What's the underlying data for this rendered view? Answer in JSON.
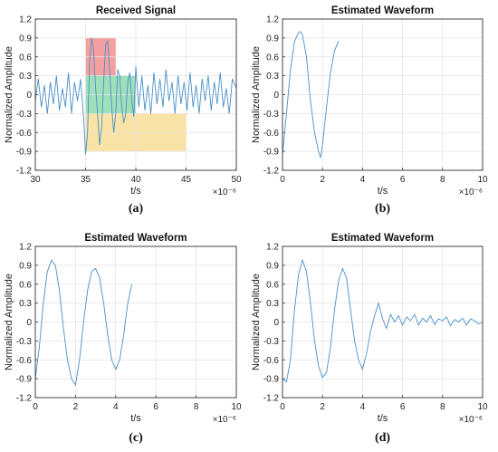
{
  "chart_data": [
    {
      "type": "line",
      "panel_caption": "(a)",
      "title": "Received Signal",
      "xlabel": "t/s",
      "ylabel": "Normalized Amplitude",
      "x_exponent_label": "×10⁻⁶",
      "xlim": [
        30,
        50
      ],
      "ylim": [
        -1.2,
        1.2
      ],
      "xticks": [
        "30",
        "35",
        "40",
        "45",
        "50"
      ],
      "yticks": [
        "-1.2",
        "-0.9",
        "-0.6",
        "-0.3",
        "0",
        "0.3",
        "0.6",
        "0.9",
        "1.2"
      ],
      "grid": true,
      "line_color": "#4a90c8",
      "highlight_regions": [
        {
          "x": [
            35,
            38
          ],
          "y": [
            0.3,
            0.9
          ],
          "color": "#f08080"
        },
        {
          "x": [
            35,
            40
          ],
          "y": [
            -0.3,
            0.3
          ],
          "color": "#7fd6a4"
        },
        {
          "x": [
            35,
            45
          ],
          "y": [
            -0.9,
            -0.3
          ],
          "color": "#f8d98a"
        }
      ],
      "series": [
        {
          "x": [
            30,
            30.3,
            30.6,
            30.9,
            31.2,
            31.5,
            31.8,
            32.1,
            32.4,
            32.7,
            33.0,
            33.3,
            33.6,
            33.9,
            34.2,
            34.5,
            34.8,
            35.0,
            35.2,
            35.4,
            35.6,
            35.8,
            36.0,
            36.2,
            36.4,
            36.6,
            36.8,
            37.0,
            37.2,
            37.4,
            37.6,
            37.8,
            38.0,
            38.2,
            38.4,
            38.6,
            38.8,
            39.0,
            39.2,
            39.4,
            39.6,
            39.8,
            40.0,
            40.3,
            40.6,
            40.9,
            41.2,
            41.5,
            41.8,
            42.1,
            42.4,
            42.7,
            43.0,
            43.3,
            43.6,
            43.9,
            44.2,
            44.5,
            44.8,
            45.1,
            45.4,
            45.7,
            46.0,
            46.3,
            46.6,
            46.9,
            47.2,
            47.5,
            47.8,
            48.1,
            48.4,
            48.7,
            49.0,
            49.3,
            49.6,
            50.0
          ],
          "y": [
            -0.1,
            0.25,
            -0.2,
            0.15,
            -0.3,
            0.2,
            -0.15,
            0.3,
            -0.25,
            0.1,
            -0.2,
            0.35,
            -0.3,
            0.2,
            -0.1,
            0.25,
            -0.35,
            -0.95,
            -0.6,
            0.5,
            0.9,
            0.7,
            0.1,
            -0.3,
            -0.8,
            -0.5,
            0.2,
            0.8,
            0.85,
            0.4,
            -0.2,
            -0.6,
            -0.3,
            0.4,
            0.3,
            -0.2,
            -0.45,
            -0.3,
            0.2,
            0.35,
            -0.1,
            -0.35,
            0.45,
            -0.2,
            0.3,
            -0.25,
            0.15,
            -0.3,
            0.35,
            -0.15,
            0.25,
            -0.2,
            0.4,
            -0.1,
            0.2,
            -0.3,
            0.3,
            -0.15,
            0.2,
            -0.25,
            0.35,
            -0.2,
            0.15,
            -0.3,
            0.25,
            -0.1,
            0.3,
            -0.25,
            0.2,
            -0.15,
            0.35,
            -0.2,
            0.1,
            -0.3,
            0.25,
            0.1
          ]
        }
      ]
    },
    {
      "type": "line",
      "panel_caption": "(b)",
      "title": "Estimated Waveform",
      "xlabel": "t/s",
      "ylabel": "Normalized Amplitude",
      "x_exponent_label": "×10⁻⁶",
      "xlim": [
        0,
        10
      ],
      "ylim": [
        -1.2,
        1.2
      ],
      "xticks": [
        "0",
        "2",
        "4",
        "6",
        "8",
        "10"
      ],
      "yticks": [
        "-1.2",
        "-0.9",
        "-0.6",
        "-0.3",
        "0",
        "0.3",
        "0.6",
        "0.9",
        "1.2"
      ],
      "grid": true,
      "line_color": "#4a90c8",
      "series": [
        {
          "x": [
            0,
            0.2,
            0.4,
            0.6,
            0.8,
            0.9,
            1.0,
            1.2,
            1.4,
            1.6,
            1.8,
            1.9,
            2.0,
            2.2,
            2.4,
            2.6,
            2.8
          ],
          "y": [
            -0.95,
            -0.3,
            0.4,
            0.85,
            0.98,
            1.0,
            0.95,
            0.6,
            -0.1,
            -0.6,
            -0.9,
            -1.0,
            -0.8,
            -0.2,
            0.35,
            0.7,
            0.85
          ]
        }
      ]
    },
    {
      "type": "line",
      "panel_caption": "(c)",
      "title": "Estimated Waveform",
      "xlabel": "t/s",
      "ylabel": "Normalized Amplitude",
      "x_exponent_label": "×10⁻⁶",
      "xlim": [
        0,
        10
      ],
      "ylim": [
        -1.2,
        1.2
      ],
      "xticks": [
        "0",
        "2",
        "4",
        "6",
        "8",
        "10"
      ],
      "yticks": [
        "-1.2",
        "-0.9",
        "-0.6",
        "-0.3",
        "0",
        "0.3",
        "0.6",
        "0.9",
        "1.2"
      ],
      "grid": true,
      "line_color": "#4a90c8",
      "series": [
        {
          "x": [
            0,
            0.2,
            0.4,
            0.6,
            0.8,
            1.0,
            1.2,
            1.4,
            1.6,
            1.8,
            2.0,
            2.2,
            2.4,
            2.6,
            2.8,
            3.0,
            3.2,
            3.4,
            3.6,
            3.8,
            4.0,
            4.2,
            4.4,
            4.6,
            4.8
          ],
          "y": [
            -0.9,
            -0.4,
            0.3,
            0.8,
            0.98,
            0.9,
            0.5,
            -0.1,
            -0.6,
            -0.9,
            -1.0,
            -0.6,
            0.0,
            0.5,
            0.8,
            0.85,
            0.7,
            0.3,
            -0.2,
            -0.6,
            -0.75,
            -0.6,
            -0.2,
            0.3,
            0.6
          ]
        }
      ]
    },
    {
      "type": "line",
      "panel_caption": "(d)",
      "title": "Estimated Waveform",
      "xlabel": "t/s",
      "ylabel": "Normalized Amplitude",
      "x_exponent_label": "×10⁻⁶",
      "xlim": [
        0,
        10
      ],
      "ylim": [
        -1.2,
        1.2
      ],
      "xticks": [
        "0",
        "2",
        "4",
        "6",
        "8",
        "10"
      ],
      "yticks": [
        "-1.2",
        "-0.9",
        "-0.6",
        "-0.3",
        "0",
        "0.3",
        "0.6",
        "0.9",
        "1.2"
      ],
      "grid": true,
      "line_color": "#4a90c8",
      "series": [
        {
          "x": [
            0,
            0.2,
            0.4,
            0.6,
            0.8,
            1.0,
            1.2,
            1.4,
            1.6,
            1.8,
            2.0,
            2.2,
            2.4,
            2.6,
            2.8,
            3.0,
            3.2,
            3.4,
            3.6,
            3.8,
            4.0,
            4.2,
            4.4,
            4.6,
            4.8,
            5.0,
            5.2,
            5.4,
            5.6,
            5.8,
            6.0,
            6.2,
            6.4,
            6.6,
            6.8,
            7.0,
            7.2,
            7.4,
            7.6,
            7.8,
            8.0,
            8.2,
            8.4,
            8.6,
            8.8,
            9.0,
            9.2,
            9.4,
            9.6,
            9.8,
            10.0
          ],
          "y": [
            -0.9,
            -0.95,
            -0.6,
            0.2,
            0.75,
            0.98,
            0.8,
            0.3,
            -0.3,
            -0.7,
            -0.88,
            -0.8,
            -0.4,
            0.2,
            0.65,
            0.85,
            0.7,
            0.2,
            -0.3,
            -0.6,
            -0.75,
            -0.5,
            -0.15,
            0.1,
            0.3,
            0.05,
            -0.1,
            0.12,
            0.0,
            0.1,
            -0.05,
            0.08,
            0.02,
            0.12,
            -0.05,
            0.06,
            0.0,
            0.1,
            -0.04,
            0.05,
            0.02,
            0.08,
            -0.06,
            0.04,
            0.0,
            0.06,
            -0.05,
            0.05,
            0.02,
            -0.03,
            0.0
          ]
        }
      ]
    }
  ]
}
